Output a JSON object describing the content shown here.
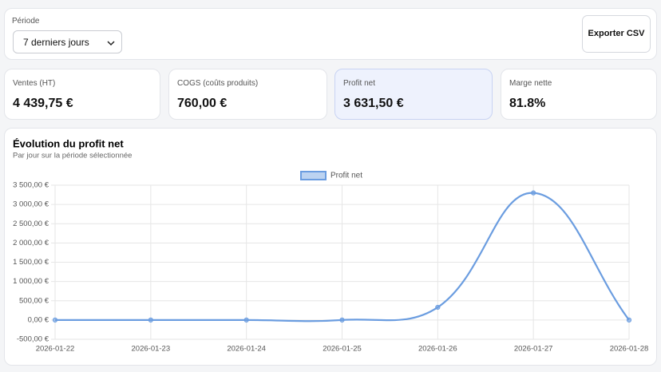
{
  "filters": {
    "period_label": "Période",
    "period_value": "7 derniers jours"
  },
  "export_button": "Exporter CSV",
  "kpis": [
    {
      "label": "Ventes (HT)",
      "value": "4 439,75 €"
    },
    {
      "label": "COGS (coûts produits)",
      "value": "760,00 €"
    },
    {
      "label": "Profit net",
      "value": "3 631,50 €"
    },
    {
      "label": "Marge nette",
      "value": "81.8%"
    }
  ],
  "chart_data": {
    "type": "line",
    "title": "Évolution du profit net",
    "subtitle": "Par jour sur la période sélectionnée",
    "categories": [
      "2026-01-22",
      "2026-01-23",
      "2026-01-24",
      "2026-01-25",
      "2026-01-26",
      "2026-01-27",
      "2026-01-28"
    ],
    "series": [
      {
        "name": "Profit net",
        "color": "#6b9de0",
        "values": [
          0,
          0,
          0,
          0,
          330,
          3300,
          0
        ]
      }
    ],
    "ylim": [
      -500,
      3500
    ],
    "yticks": [
      {
        "value": -500,
        "label": "-500,00 €"
      },
      {
        "value": 0,
        "label": "0,00 €"
      },
      {
        "value": 500,
        "label": "500,00 €"
      },
      {
        "value": 1000,
        "label": "1 000,00 €"
      },
      {
        "value": 1500,
        "label": "1 500,00 €"
      },
      {
        "value": 2000,
        "label": "2 000,00 €"
      },
      {
        "value": 2500,
        "label": "2 500,00 €"
      },
      {
        "value": 3000,
        "label": "3 000,00 €"
      },
      {
        "value": 3500,
        "label": "3 500,00 €"
      }
    ],
    "grid": true
  }
}
